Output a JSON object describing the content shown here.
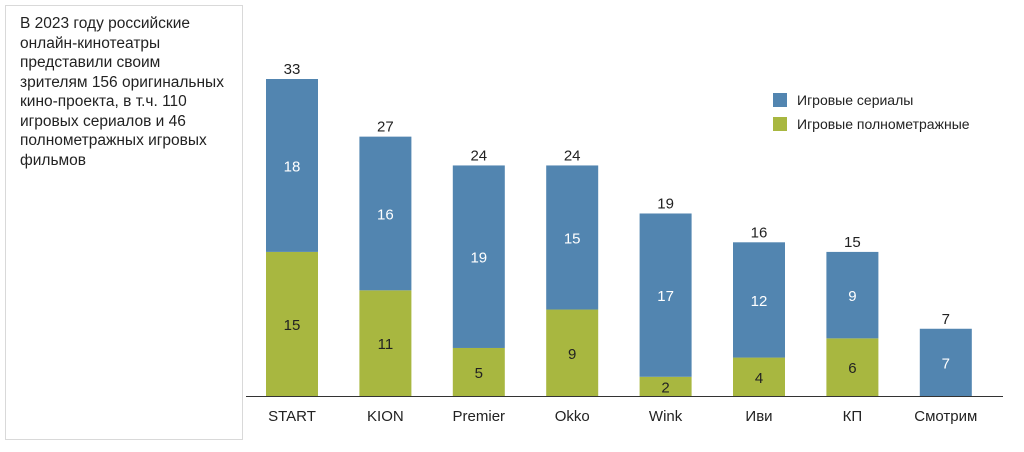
{
  "note": {
    "text": "В 2023 году российские онлайн-кинотеатры представили своим зрителям 156 оригинальных кино-проекта, в т.ч. 110 игровых сериалов и 46 полнометражных игровых фильмов"
  },
  "colors": {
    "series": "#5285b0",
    "films": "#a8b740",
    "axis": "#333333",
    "segment_text": "#ffffff",
    "text": "#222222"
  },
  "chart_data": {
    "type": "bar",
    "stacked": true,
    "categories": [
      "START",
      "KION",
      "Premier",
      "Okko",
      "Wink",
      "Иви",
      "КП",
      "Смотрим"
    ],
    "series": [
      {
        "name": "Игровые полнометражные",
        "values": [
          15,
          11,
          5,
          9,
          2,
          4,
          6,
          0
        ]
      },
      {
        "name": "Игровые сериалы",
        "values": [
          18,
          16,
          19,
          15,
          17,
          12,
          9,
          7
        ]
      }
    ],
    "totals": [
      33,
      27,
      24,
      24,
      19,
      16,
      15,
      7
    ],
    "legend_order": [
      "Игровые сериалы",
      "Игровые полнометражные"
    ],
    "legend_position": "top-right",
    "ylim": [
      0,
      33
    ],
    "grid": false
  }
}
